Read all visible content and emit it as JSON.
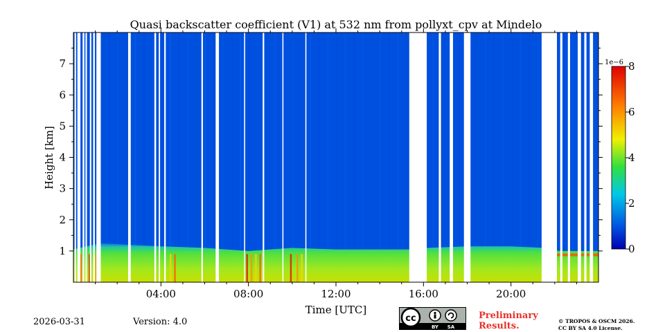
{
  "chart_data": {
    "type": "heatmap",
    "title": "Quasi backscatter coefficient (V1) at 532 nm from pollyxt_cpv at Mindelo",
    "xlabel": "Time [UTC]",
    "ylabel": "Height [km]",
    "xlim_hours": [
      0,
      24
    ],
    "ylim_km": [
      0,
      8
    ],
    "x_ticks": [
      {
        "hour": 4,
        "label": "04:00"
      },
      {
        "hour": 8,
        "label": "08:00"
      },
      {
        "hour": 12,
        "label": "12:00"
      },
      {
        "hour": 16,
        "label": "16:00"
      },
      {
        "hour": 20,
        "label": "20:00"
      }
    ],
    "y_ticks": [
      {
        "km": 1,
        "label": "1"
      },
      {
        "km": 2,
        "label": "2"
      },
      {
        "km": 3,
        "label": "3"
      },
      {
        "km": 4,
        "label": "4"
      },
      {
        "km": 5,
        "label": "5"
      },
      {
        "km": 6,
        "label": "6"
      },
      {
        "km": 7,
        "label": "7"
      }
    ],
    "colorbar": {
      "range": [
        0,
        8
      ],
      "exponent_label": "1e−6",
      "ticks": [
        {
          "value": 0,
          "label": "0"
        },
        {
          "value": 2,
          "label": "2"
        },
        {
          "value": 4,
          "label": "4"
        },
        {
          "value": 6,
          "label": "6"
        },
        {
          "value": 8,
          "label": "8"
        }
      ]
    },
    "boundary_layer_top_km": [
      [
        0,
        1.05
      ],
      [
        1.2,
        1.25
      ],
      [
        2.5,
        1.2
      ],
      [
        4,
        1.15
      ],
      [
        6,
        1.1
      ],
      [
        8,
        1.0
      ],
      [
        10,
        1.1
      ],
      [
        12,
        1.05
      ],
      [
        14,
        1.05
      ],
      [
        15.4,
        1.05
      ],
      [
        16.2,
        1.1
      ],
      [
        18,
        1.15
      ],
      [
        20,
        1.15
      ],
      [
        21.5,
        1.1
      ],
      [
        22.2,
        1.0
      ],
      [
        24,
        1.0
      ]
    ],
    "missing_data_hours": [
      [
        0.05,
        0.12
      ],
      [
        0.18,
        0.32
      ],
      [
        0.42,
        0.5
      ],
      [
        0.55,
        0.62
      ],
      [
        0.75,
        0.82
      ],
      [
        0.9,
        0.98
      ],
      [
        1.05,
        1.25
      ],
      [
        2.5,
        2.62
      ],
      [
        3.7,
        3.78
      ],
      [
        3.9,
        3.96
      ],
      [
        4.15,
        4.22
      ],
      [
        5.85,
        5.92
      ],
      [
        6.5,
        6.65
      ],
      [
        7.8,
        7.85
      ],
      [
        8.65,
        8.72
      ],
      [
        9.55,
        9.6
      ],
      [
        10.6,
        10.65
      ],
      [
        15.35,
        16.15
      ],
      [
        16.7,
        16.8
      ],
      [
        17.2,
        17.35
      ],
      [
        17.85,
        18.15
      ],
      [
        21.4,
        22.1
      ],
      [
        22.25,
        22.35
      ],
      [
        22.6,
        22.7
      ],
      [
        23.05,
        23.2
      ],
      [
        23.35,
        23.45
      ],
      [
        23.6,
        23.75
      ]
    ]
  },
  "footer": {
    "date": "2026-03-31",
    "version": "Version: 4.0",
    "preliminary_line1": "Preliminary",
    "preliminary_line2": "Results.",
    "copyright_line1": "© TROPOS & OSCM 2026.",
    "copyright_line2": "CC BY SA 4.0 License.",
    "cc_logo_text": "cc",
    "cc_by": "BY",
    "cc_sa": "SA"
  },
  "colors": {
    "background_aerosol_free": "#0050e0",
    "missing": "#ffffff"
  }
}
